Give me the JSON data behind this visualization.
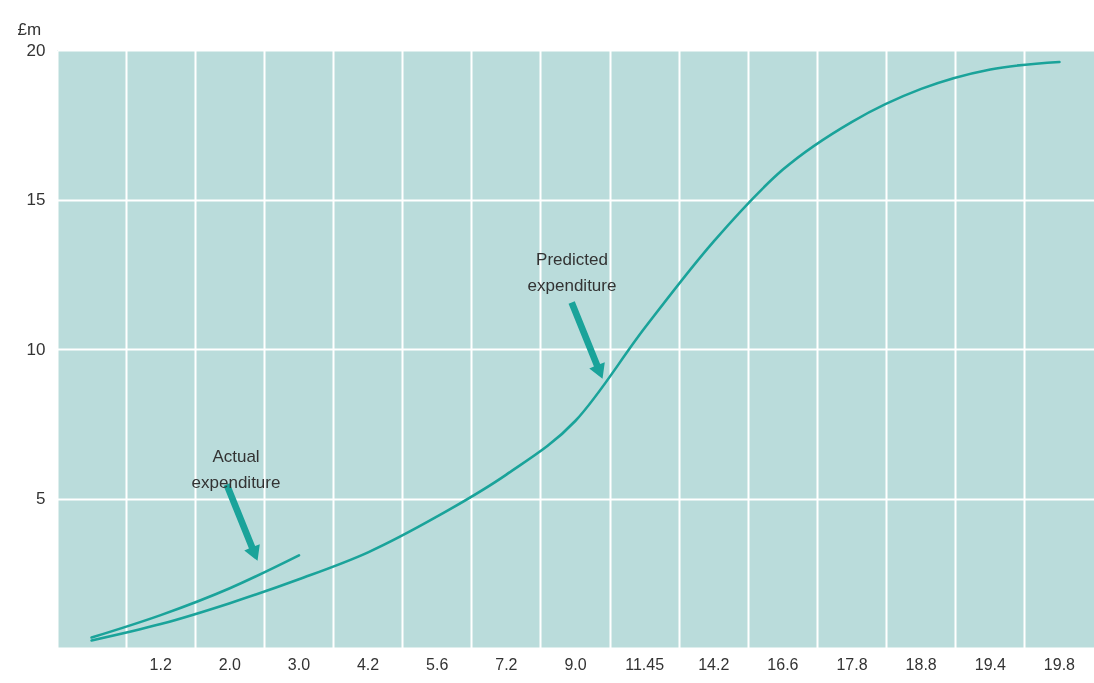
{
  "chart_data": {
    "type": "line",
    "ylabel": "£m",
    "grid": true,
    "categories": [
      null,
      "1.2",
      "2.0",
      "3.0",
      "4.2",
      "5.6",
      "7.2",
      "9.0",
      "11.45",
      "14.2",
      "16.6",
      "17.8",
      "18.8",
      "19.4",
      "19.8"
    ],
    "ylim": [
      0,
      20
    ],
    "yticks": [
      {
        "value": 0,
        "label": null
      },
      5,
      10,
      15,
      20
    ],
    "series": [
      {
        "color": "#1aa39a",
        "values": [
          0.25,
          0.8,
          1.5,
          2.3,
          3.2,
          4.4,
          5.8,
          7.6,
          10.7,
          13.6,
          16.0,
          17.6,
          18.7,
          19.35,
          19.6
        ]
      },
      {
        "color": "#1aa39a",
        "values": [
          0.35,
          1.1,
          2.0,
          3.1,
          null,
          null,
          null,
          null,
          null,
          null,
          null,
          null,
          null,
          null,
          null
        ]
      }
    ],
    "annotations": [
      "Actual expenditure",
      "Predicted expenditure"
    ]
  }
}
